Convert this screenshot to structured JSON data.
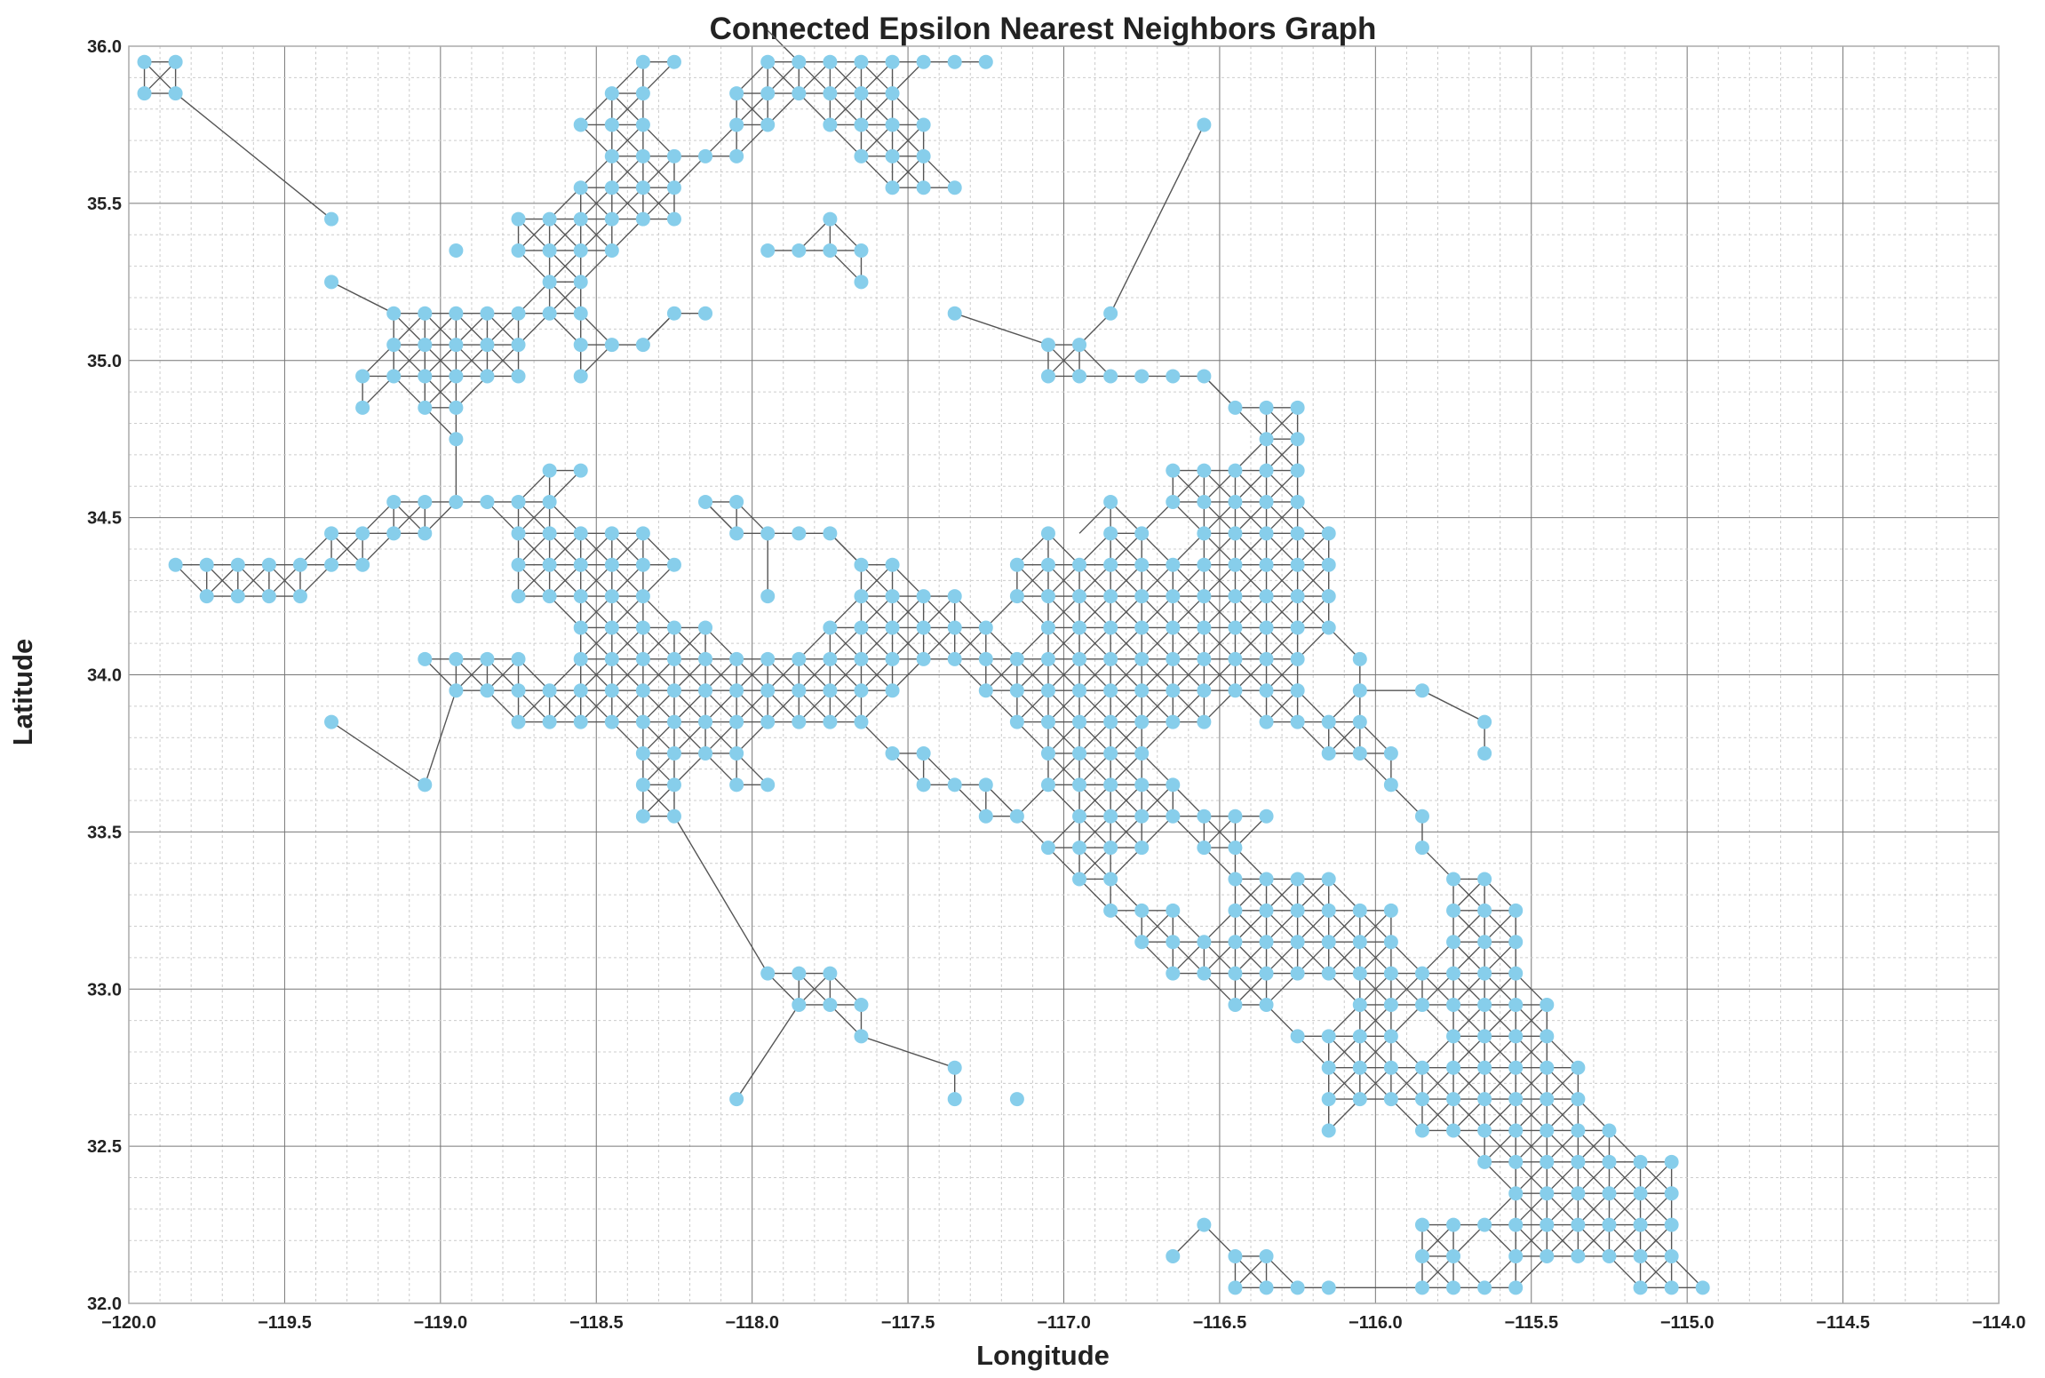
{
  "chart_data": {
    "type": "scatter",
    "title": "Connected Epsilon Nearest Neighbors Graph",
    "xlabel": "Longitude",
    "ylabel": "Latitude",
    "xlim": [
      -120.0,
      -114.0
    ],
    "ylim": [
      32.0,
      36.0
    ],
    "xticks": [
      -120.0,
      -119.5,
      -119.0,
      -118.5,
      -118.0,
      -117.5,
      -117.0,
      -116.5,
      -116.0,
      -115.5,
      -115.0,
      -114.5,
      -114.0
    ],
    "xtick_labels": [
      "−120.0",
      "−119.5",
      "−119.0",
      "−118.5",
      "−118.0",
      "−117.5",
      "−117.0",
      "−116.5",
      "−116.0",
      "−115.5",
      "−115.0",
      "−114.5",
      "−114.0"
    ],
    "yticks": [
      32.0,
      32.5,
      33.0,
      33.5,
      34.0,
      34.5,
      35.0,
      35.5,
      36.0
    ],
    "ytick_labels": [
      "32.0",
      "32.5",
      "33.0",
      "33.5",
      "34.0",
      "34.5",
      "35.0",
      "35.5",
      "36.0"
    ],
    "grid": true,
    "minor_grid": true,
    "grid_step": 0.1,
    "epsilon_neighbor_offsets": [
      0.1
    ],
    "colors": {
      "node": "#87ceeb",
      "edge": "#555555",
      "grid_major": "#777777",
      "grid_minor": "#cccccc",
      "frame": "#aaaaaa"
    },
    "rows": [
      {
        "lat": 35.95,
        "lons": [
          -119.95,
          -119.85,
          -118.35,
          -118.25,
          -117.95,
          -117.85,
          -117.75,
          -117.65,
          -117.55,
          -117.45,
          -117.35,
          -117.25
        ]
      },
      {
        "lat": 35.85,
        "lons": [
          -119.95,
          -119.85,
          -118.45,
          -118.35,
          -118.05,
          -117.95,
          -117.85,
          -117.75,
          -117.65,
          -117.55
        ]
      },
      {
        "lat": 35.75,
        "lons": [
          -118.55,
          -118.45,
          -118.35,
          -118.05,
          -117.95,
          -117.75,
          -117.65,
          -117.55,
          -117.45,
          -116.55
        ]
      },
      {
        "lat": 35.65,
        "lons": [
          -118.45,
          -118.35,
          -118.25,
          -118.15,
          -118.05,
          -117.65,
          -117.55,
          -117.45
        ]
      },
      {
        "lat": 35.55,
        "lons": [
          -118.55,
          -118.45,
          -118.35,
          -118.25,
          -117.55,
          -117.45,
          -117.35
        ]
      },
      {
        "lat": 35.45,
        "lons": [
          -119.35,
          -118.75,
          -118.65,
          -118.55,
          -118.45,
          -118.35,
          -118.25,
          -117.75
        ]
      },
      {
        "lat": 35.35,
        "lons": [
          -118.95,
          -118.75,
          -118.65,
          -118.55,
          -118.45,
          -117.95,
          -117.85,
          -117.75,
          -117.65
        ]
      },
      {
        "lat": 35.25,
        "lons": [
          -119.35,
          -118.65,
          -118.55,
          -117.65
        ]
      },
      {
        "lat": 35.15,
        "lons": [
          -119.15,
          -119.05,
          -118.95,
          -118.85,
          -118.75,
          -118.65,
          -118.55,
          -118.25,
          -118.15,
          -117.35,
          -116.85
        ]
      },
      {
        "lat": 35.05,
        "lons": [
          -119.15,
          -119.05,
          -118.95,
          -118.85,
          -118.75,
          -118.55,
          -118.45,
          -118.35,
          -117.05,
          -116.95
        ]
      },
      {
        "lat": 34.95,
        "lons": [
          -119.25,
          -119.15,
          -119.05,
          -118.95,
          -118.85,
          -118.75,
          -118.55,
          -117.05,
          -116.95,
          -116.85,
          -116.75,
          -116.65,
          -116.55
        ]
      },
      {
        "lat": 34.85,
        "lons": [
          -119.25,
          -119.05,
          -118.95,
          -116.45,
          -116.35,
          -116.25
        ]
      },
      {
        "lat": 34.75,
        "lons": [
          -118.95,
          -116.35,
          -116.25
        ]
      },
      {
        "lat": 34.65,
        "lons": [
          -118.65,
          -118.55,
          -116.65,
          -116.55,
          -116.45,
          -116.35,
          -116.25
        ]
      },
      {
        "lat": 34.55,
        "lons": [
          -119.15,
          -119.05,
          -118.95,
          -118.85,
          -118.75,
          -118.65,
          -118.15,
          -118.05,
          -116.85,
          -116.65,
          -116.55,
          -116.45,
          -116.35,
          -116.25
        ]
      },
      {
        "lat": 34.45,
        "lons": [
          -119.35,
          -119.25,
          -119.15,
          -119.05,
          -118.75,
          -118.65,
          -118.55,
          -118.45,
          -118.35,
          -118.05,
          -117.95,
          -117.85,
          -117.75,
          -117.05,
          -116.85,
          -116.75,
          -116.55,
          -116.45,
          -116.35,
          -116.25,
          -116.15
        ]
      },
      {
        "lat": 34.35,
        "lons": [
          -119.85,
          -119.75,
          -119.65,
          -119.55,
          -119.45,
          -119.35,
          -119.25,
          -118.75,
          -118.65,
          -118.55,
          -118.45,
          -118.35,
          -118.25,
          -117.65,
          -117.55,
          -117.15,
          -117.05,
          -116.95,
          -116.85,
          -116.75,
          -116.65,
          -116.55,
          -116.45,
          -116.35,
          -116.25,
          -116.15
        ]
      },
      {
        "lat": 34.25,
        "lons": [
          -119.75,
          -119.65,
          -119.55,
          -119.45,
          -118.75,
          -118.65,
          -118.55,
          -118.45,
          -118.35,
          -117.95,
          -117.65,
          -117.55,
          -117.45,
          -117.35,
          -117.15,
          -117.05,
          -116.95,
          -116.85,
          -116.75,
          -116.65,
          -116.55,
          -116.45,
          -116.35,
          -116.25,
          -116.15
        ]
      },
      {
        "lat": 34.15,
        "lons": [
          -118.55,
          -118.45,
          -118.35,
          -118.25,
          -118.15,
          -117.75,
          -117.65,
          -117.55,
          -117.45,
          -117.35,
          -117.25,
          -117.05,
          -116.95,
          -116.85,
          -116.75,
          -116.65,
          -116.55,
          -116.45,
          -116.35,
          -116.25,
          -116.15
        ]
      },
      {
        "lat": 34.05,
        "lons": [
          -119.05,
          -118.95,
          -118.85,
          -118.75,
          -118.55,
          -118.45,
          -118.35,
          -118.25,
          -118.15,
          -118.05,
          -117.95,
          -117.85,
          -117.75,
          -117.65,
          -117.55,
          -117.45,
          -117.35,
          -117.25,
          -117.15,
          -117.05,
          -116.95,
          -116.85,
          -116.75,
          -116.65,
          -116.55,
          -116.45,
          -116.35,
          -116.25,
          -116.05
        ]
      },
      {
        "lat": 33.95,
        "lons": [
          -118.95,
          -118.85,
          -118.75,
          -118.65,
          -118.55,
          -118.45,
          -118.35,
          -118.25,
          -118.15,
          -118.05,
          -117.95,
          -117.85,
          -117.75,
          -117.65,
          -117.55,
          -117.25,
          -117.15,
          -117.05,
          -116.95,
          -116.85,
          -116.75,
          -116.65,
          -116.55,
          -116.45,
          -116.35,
          -116.25,
          -116.05,
          -115.85
        ]
      },
      {
        "lat": 33.85,
        "lons": [
          -119.35,
          -118.75,
          -118.65,
          -118.55,
          -118.45,
          -118.35,
          -118.25,
          -118.15,
          -118.05,
          -117.95,
          -117.85,
          -117.75,
          -117.65,
          -117.15,
          -117.05,
          -116.95,
          -116.85,
          -116.75,
          -116.65,
          -116.55,
          -116.35,
          -116.25,
          -116.15,
          -116.05,
          -115.65
        ]
      },
      {
        "lat": 33.75,
        "lons": [
          -118.35,
          -118.25,
          -118.15,
          -118.05,
          -117.55,
          -117.45,
          -117.05,
          -116.95,
          -116.85,
          -116.75,
          -116.15,
          -116.05,
          -115.95,
          -115.65
        ]
      },
      {
        "lat": 33.65,
        "lons": [
          -119.05,
          -118.35,
          -118.25,
          -118.05,
          -117.95,
          -117.45,
          -117.35,
          -117.25,
          -117.05,
          -116.95,
          -116.85,
          -116.75,
          -116.65,
          -115.95
        ]
      },
      {
        "lat": 33.55,
        "lons": [
          -118.35,
          -118.25,
          -117.25,
          -117.15,
          -116.95,
          -116.85,
          -116.75,
          -116.65,
          -116.55,
          -116.45,
          -116.35,
          -115.85
        ]
      },
      {
        "lat": 33.45,
        "lons": [
          -117.05,
          -116.95,
          -116.85,
          -116.75,
          -116.55,
          -116.45,
          -115.85
        ]
      },
      {
        "lat": 33.35,
        "lons": [
          -116.95,
          -116.85,
          -116.45,
          -116.35,
          -116.25,
          -116.15,
          -115.75,
          -115.65
        ]
      },
      {
        "lat": 33.25,
        "lons": [
          -116.85,
          -116.75,
          -116.65,
          -116.45,
          -116.35,
          -116.25,
          -116.15,
          -116.05,
          -115.95,
          -115.75,
          -115.65,
          -115.55
        ]
      },
      {
        "lat": 33.15,
        "lons": [
          -116.75,
          -116.65,
          -116.55,
          -116.45,
          -116.35,
          -116.25,
          -116.15,
          -116.05,
          -115.95,
          -115.75,
          -115.65,
          -115.55
        ]
      },
      {
        "lat": 33.05,
        "lons": [
          -117.95,
          -117.85,
          -117.75,
          -116.65,
          -116.55,
          -116.45,
          -116.35,
          -116.25,
          -116.15,
          -116.05,
          -115.95,
          -115.85,
          -115.75,
          -115.65,
          -115.55
        ]
      },
      {
        "lat": 32.95,
        "lons": [
          -117.85,
          -117.75,
          -117.65,
          -116.45,
          -116.35,
          -116.05,
          -115.95,
          -115.85,
          -115.75,
          -115.65,
          -115.55,
          -115.45
        ]
      },
      {
        "lat": 32.85,
        "lons": [
          -117.65,
          -116.25,
          -116.15,
          -116.05,
          -115.95,
          -115.75,
          -115.65,
          -115.55,
          -115.45
        ]
      },
      {
        "lat": 32.75,
        "lons": [
          -117.35,
          -116.15,
          -116.05,
          -115.95,
          -115.85,
          -115.75,
          -115.65,
          -115.55,
          -115.45,
          -115.35
        ]
      },
      {
        "lat": 32.65,
        "lons": [
          -118.05,
          -117.35,
          -117.15,
          -116.15,
          -116.05,
          -115.95,
          -115.85,
          -115.75,
          -115.65,
          -115.55,
          -115.45,
          -115.35
        ]
      },
      {
        "lat": 32.55,
        "lons": [
          -116.15,
          -115.85,
          -115.75,
          -115.65,
          -115.55,
          -115.45,
          -115.35,
          -115.25
        ]
      },
      {
        "lat": 32.45,
        "lons": [
          -115.65,
          -115.55,
          -115.45,
          -115.35,
          -115.25,
          -115.15,
          -115.05
        ]
      },
      {
        "lat": 32.35,
        "lons": [
          -115.55,
          -115.45,
          -115.35,
          -115.25,
          -115.15,
          -115.05
        ]
      },
      {
        "lat": 32.25,
        "lons": [
          -116.55,
          -115.85,
          -115.75,
          -115.65,
          -115.55,
          -115.45,
          -115.35,
          -115.25,
          -115.15,
          -115.05
        ]
      },
      {
        "lat": 32.15,
        "lons": [
          -116.65,
          -116.45,
          -116.35,
          -115.85,
          -115.75,
          -115.55,
          -115.45,
          -115.35,
          -115.25,
          -115.15,
          -115.05
        ]
      },
      {
        "lat": 32.05,
        "lons": [
          -116.45,
          -116.35,
          -116.25,
          -116.15,
          -115.85,
          -115.75,
          -115.65,
          -115.55,
          -115.15,
          -115.05,
          -114.95
        ]
      }
    ],
    "extra_edges": [
      [
        [
          -119.85,
          35.85
        ],
        [
          -119.35,
          35.45
        ]
      ],
      [
        [
          -119.35,
          35.25
        ],
        [
          -119.15,
          35.15
        ]
      ],
      [
        [
          -118.95,
          34.75
        ],
        [
          -118.95,
          34.55
        ]
      ],
      [
        [
          -118.35,
          35.05
        ],
        [
          -118.25,
          35.15
        ]
      ],
      [
        [
          -117.35,
          35.15
        ],
        [
          -117.05,
          35.05
        ]
      ],
      [
        [
          -116.85,
          35.15
        ],
        [
          -116.55,
          35.75
        ]
      ],
      [
        [
          -116.55,
          34.95
        ],
        [
          -116.45,
          34.85
        ]
      ],
      [
        [
          -119.35,
          33.85
        ],
        [
          -119.05,
          33.65
        ]
      ],
      [
        [
          -119.05,
          33.65
        ],
        [
          -118.95,
          33.95
        ]
      ],
      [
        [
          -118.25,
          33.55
        ],
        [
          -117.95,
          33.05
        ]
      ],
      [
        [
          -118.05,
          32.65
        ],
        [
          -117.85,
          32.95
        ]
      ],
      [
        [
          -117.65,
          32.85
        ],
        [
          -117.35,
          32.75
        ]
      ],
      [
        [
          -116.05,
          33.95
        ],
        [
          -115.85,
          33.95
        ]
      ],
      [
        [
          -115.85,
          33.95
        ],
        [
          -115.65,
          33.85
        ]
      ],
      [
        [
          -116.15,
          32.05
        ],
        [
          -115.85,
          32.05
        ]
      ],
      [
        [
          -117.95,
          34.45
        ],
        [
          -117.95,
          34.25
        ]
      ],
      [
        [
          -117.75,
          34.45
        ],
        [
          -117.65,
          34.35
        ]
      ],
      [
        [
          -116.85,
          34.55
        ],
        [
          -116.95,
          34.45
        ]
      ],
      [
        [
          -117.85,
          35.95
        ],
        [
          -117.95,
          36.05
        ]
      ],
      [
        [
          -118.15,
          34.55
        ],
        [
          -118.05,
          34.45
        ]
      ]
    ]
  }
}
